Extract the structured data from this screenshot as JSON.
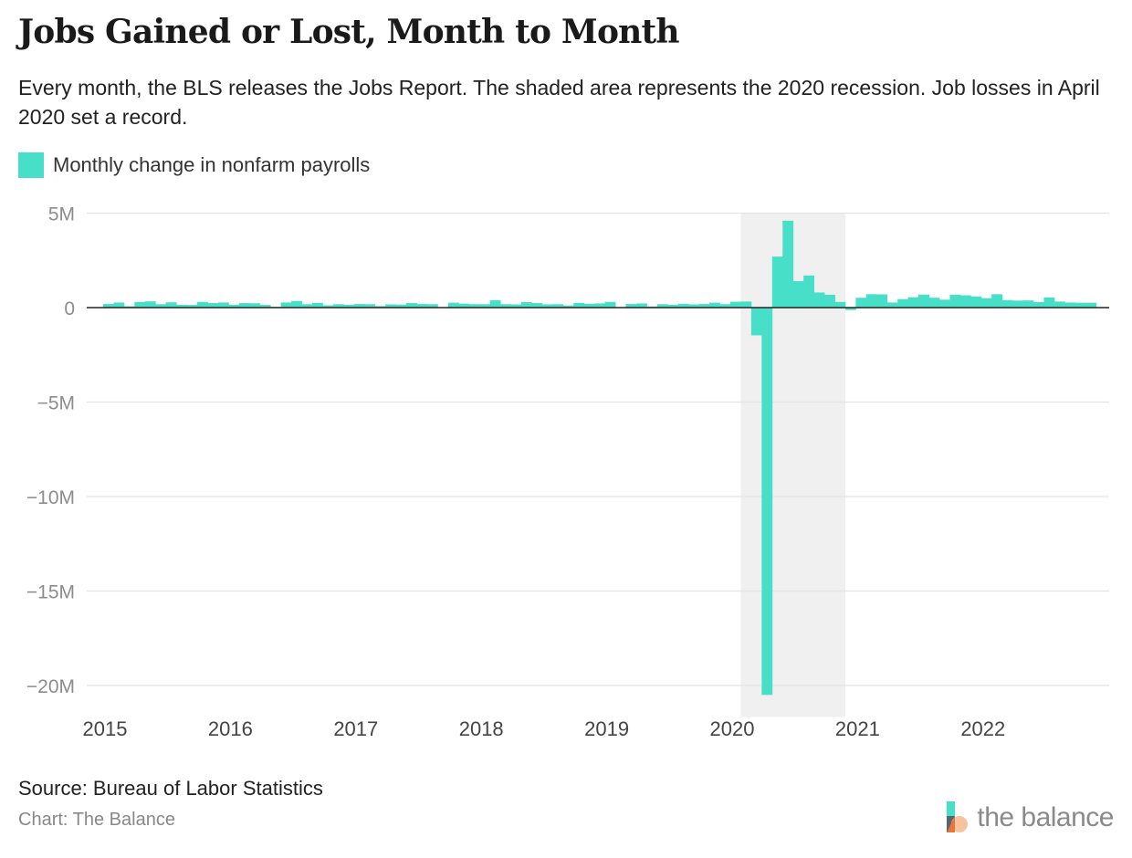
{
  "title": "Jobs Gained or Lost, Month to Month",
  "subtitle": "Every month, the BLS releases the Jobs Report. The shaded area represents the 2020 recession. Job losses in April 2020 set a record.",
  "source": "Source: Bureau of Labor Statistics",
  "credit": "Chart: The Balance",
  "brand": "the balance",
  "colors": {
    "bar": "#48dfc9",
    "shade": "#f0f0f0",
    "grid": "#e3e3e3",
    "zero": "#222222",
    "tick": "#8c8c8c"
  },
  "chart_data": {
    "type": "bar",
    "title": "Jobs Gained or Lost, Month to Month",
    "legend": [
      "Monthly change in nonfarm payrolls"
    ],
    "legend_position": "top-left",
    "xlabel": "",
    "ylabel": "",
    "ylim": [
      -21,
      5
    ],
    "yticks": [
      5,
      0,
      -5,
      -10,
      -15,
      -20
    ],
    "ytick_labels": [
      "5M",
      "0",
      "−5M",
      "−10M",
      "−15M",
      "−20M"
    ],
    "xticks": [
      2015,
      2016,
      2017,
      2018,
      2019,
      2020,
      2021,
      2022
    ],
    "xtick_labels": [
      "2015",
      "2016",
      "2017",
      "2018",
      "2019",
      "2020",
      "2021",
      "2022"
    ],
    "xlim": [
      2015.0,
      2022.9167
    ],
    "grid": true,
    "shaded_region": {
      "label": "2020 recession",
      "from": 2020.0833,
      "to": 2020.9167
    },
    "start_month": "2015-01",
    "units": "millions of jobs",
    "series": [
      {
        "name": "Monthly change in nonfarm payrolls",
        "values": [
          0.19,
          0.27,
          0.07,
          0.3,
          0.33,
          0.18,
          0.28,
          0.15,
          0.14,
          0.3,
          0.24,
          0.27,
          0.15,
          0.24,
          0.23,
          0.14,
          0.04,
          0.27,
          0.35,
          0.18,
          0.25,
          0.12,
          0.18,
          0.15,
          0.19,
          0.18,
          0.08,
          0.17,
          0.16,
          0.24,
          0.19,
          0.18,
          0.02,
          0.26,
          0.21,
          0.18,
          0.18,
          0.39,
          0.18,
          0.17,
          0.29,
          0.24,
          0.17,
          0.18,
          0.11,
          0.25,
          0.2,
          0.22,
          0.3,
          0.02,
          0.19,
          0.22,
          0.06,
          0.18,
          0.15,
          0.2,
          0.17,
          0.19,
          0.26,
          0.18,
          0.31,
          0.32,
          -1.47,
          -20.5,
          2.7,
          4.6,
          1.4,
          1.7,
          0.8,
          0.68,
          0.3,
          -0.13,
          0.52,
          0.71,
          0.7,
          0.27,
          0.45,
          0.55,
          0.69,
          0.52,
          0.42,
          0.68,
          0.65,
          0.59,
          0.5,
          0.71,
          0.4,
          0.37,
          0.38,
          0.29,
          0.54,
          0.32,
          0.27,
          0.26,
          0.26
        ]
      }
    ]
  }
}
